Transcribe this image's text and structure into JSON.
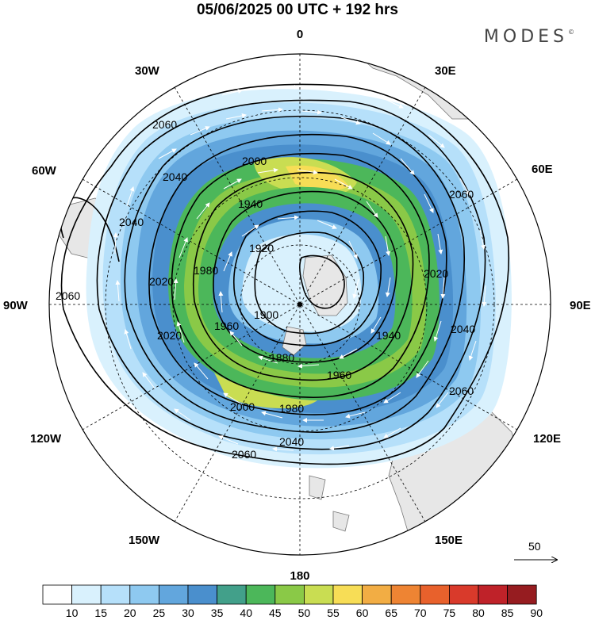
{
  "title": "05/06/2025  00 UTC  + 192 hrs",
  "brand": "MODES",
  "brand_mark": "©",
  "longitude_labels": {
    "lon_0": "0",
    "lon_30e": "30E",
    "lon_60e": "60E",
    "lon_90e": "90E",
    "lon_120e": "120E",
    "lon_150e": "150E",
    "lon_180": "180",
    "lon_150w": "150W",
    "lon_120w": "120W",
    "lon_90w": "90W",
    "lon_60w": "60W",
    "lon_30w": "30W"
  },
  "contour_labels": [
    "2060",
    "2040",
    "2000",
    "1940",
    "1920",
    "1980",
    "2020",
    "1960",
    "1900",
    "1880",
    "2060",
    "2040",
    "2020",
    "1960",
    "1940",
    "2000",
    "1980",
    "2060",
    "2040",
    "2060",
    "2040",
    "2020",
    "2060"
  ],
  "vector_reference": "50",
  "colorbar": {
    "labels": [
      "10",
      "15",
      "20",
      "25",
      "30",
      "35",
      "40",
      "45",
      "50",
      "55",
      "60",
      "65",
      "70",
      "75",
      "80",
      "85",
      "90"
    ],
    "colors": [
      "#ffffff",
      "#d9f1fd",
      "#b6e0fa",
      "#8ec9f0",
      "#62a6dd",
      "#4a8fcd",
      "#42a08a",
      "#4cb75a",
      "#8ac947",
      "#c9dd52",
      "#f7dd56",
      "#f2ad44",
      "#ee8433",
      "#e8612c",
      "#d93a2b",
      "#bf2229",
      "#961c20"
    ]
  }
}
